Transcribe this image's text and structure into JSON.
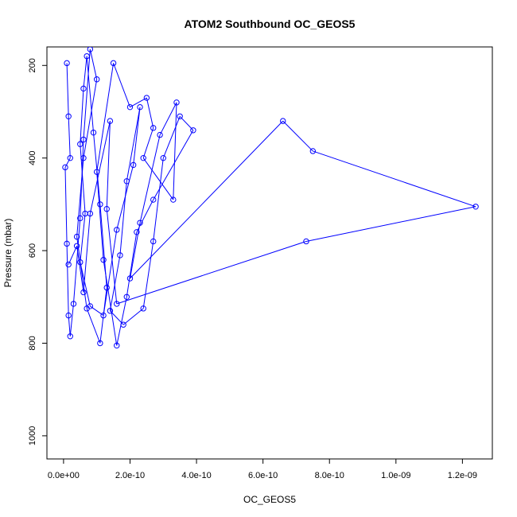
{
  "chart_data": {
    "type": "line",
    "title": "ATOM2 Southbound OC_GEOS5",
    "xlabel": "OC_GEOS5",
    "ylabel": "Pressure (mbar)",
    "xlim": [
      -5e-11,
      1.29e-09
    ],
    "ylim": [
      1050,
      160
    ],
    "y_reversed": true,
    "grid": false,
    "line_color": "#0000ff",
    "marker": "open-circle",
    "x_ticks": [
      {
        "value": 0,
        "label": "0.0e+00"
      },
      {
        "value": 2e-10,
        "label": "2.0e-10"
      },
      {
        "value": 4e-10,
        "label": "4.0e-10"
      },
      {
        "value": 6e-10,
        "label": "6.0e-10"
      },
      {
        "value": 8e-10,
        "label": "8.0e-10"
      },
      {
        "value": 1e-09,
        "label": "1.0e-09"
      },
      {
        "value": 1.2e-09,
        "label": "1.2e-09"
      }
    ],
    "y_ticks": [
      {
        "value": 200,
        "label": "200"
      },
      {
        "value": 400,
        "label": "400"
      },
      {
        "value": 600,
        "label": "600"
      },
      {
        "value": 800,
        "label": "800"
      },
      {
        "value": 1000,
        "label": "1000"
      }
    ],
    "series": [
      {
        "points": [
          [
            1e-11,
            195
          ],
          [
            1.5e-11,
            310
          ],
          [
            2e-11,
            400
          ],
          [
            5e-12,
            420
          ],
          [
            1e-11,
            585
          ],
          [
            1.5e-11,
            740
          ],
          [
            2e-11,
            785
          ],
          [
            3e-11,
            715
          ],
          [
            5e-11,
            530
          ],
          [
            6e-11,
            360
          ],
          [
            8e-11,
            165
          ],
          [
            1e-10,
            230
          ],
          [
            6e-11,
            400
          ],
          [
            4e-11,
            570
          ],
          [
            7e-11,
            725
          ],
          [
            1.1e-10,
            800
          ],
          [
            1.3e-10,
            680
          ],
          [
            1.1e-10,
            500
          ],
          [
            9e-11,
            345
          ],
          [
            7e-11,
            180
          ],
          [
            6e-11,
            250
          ],
          [
            5e-11,
            370
          ],
          [
            6.5e-11,
            520
          ],
          [
            5e-11,
            625
          ],
          [
            8e-11,
            720
          ],
          [
            1.2e-10,
            740
          ],
          [
            1.6e-10,
            555
          ],
          [
            2.1e-10,
            415
          ],
          [
            2.3e-10,
            290
          ],
          [
            1.9e-10,
            450
          ],
          [
            1.7e-10,
            610
          ],
          [
            1.4e-10,
            730
          ],
          [
            1.8e-10,
            760
          ],
          [
            2.4e-10,
            725
          ],
          [
            2.7e-10,
            580
          ],
          [
            3e-10,
            400
          ],
          [
            3.5e-10,
            310
          ],
          [
            3.9e-10,
            340
          ],
          [
            2.7e-10,
            490
          ],
          [
            2.2e-10,
            560
          ],
          [
            1.9e-10,
            700
          ],
          [
            1.6e-10,
            805
          ],
          [
            1.2e-10,
            620
          ],
          [
            1e-10,
            430
          ],
          [
            1.5e-10,
            195
          ],
          [
            2e-10,
            290
          ],
          [
            2.5e-10,
            270
          ],
          [
            2.7e-10,
            335
          ],
          [
            2.4e-10,
            400
          ],
          [
            3.3e-10,
            490
          ],
          [
            3.4e-10,
            280
          ],
          [
            2.9e-10,
            350
          ],
          [
            2.3e-10,
            540
          ],
          [
            2e-10,
            660
          ],
          [
            6.6e-10,
            320
          ],
          [
            7.5e-10,
            385
          ],
          [
            1.24e-09,
            505
          ],
          [
            7.3e-10,
            580
          ],
          [
            1.6e-10,
            715
          ],
          [
            1.3e-10,
            510
          ],
          [
            1.4e-10,
            320
          ],
          [
            8e-11,
            520
          ],
          [
            6e-11,
            690
          ],
          [
            4e-11,
            590
          ],
          [
            1.5e-11,
            630
          ]
        ]
      }
    ]
  }
}
